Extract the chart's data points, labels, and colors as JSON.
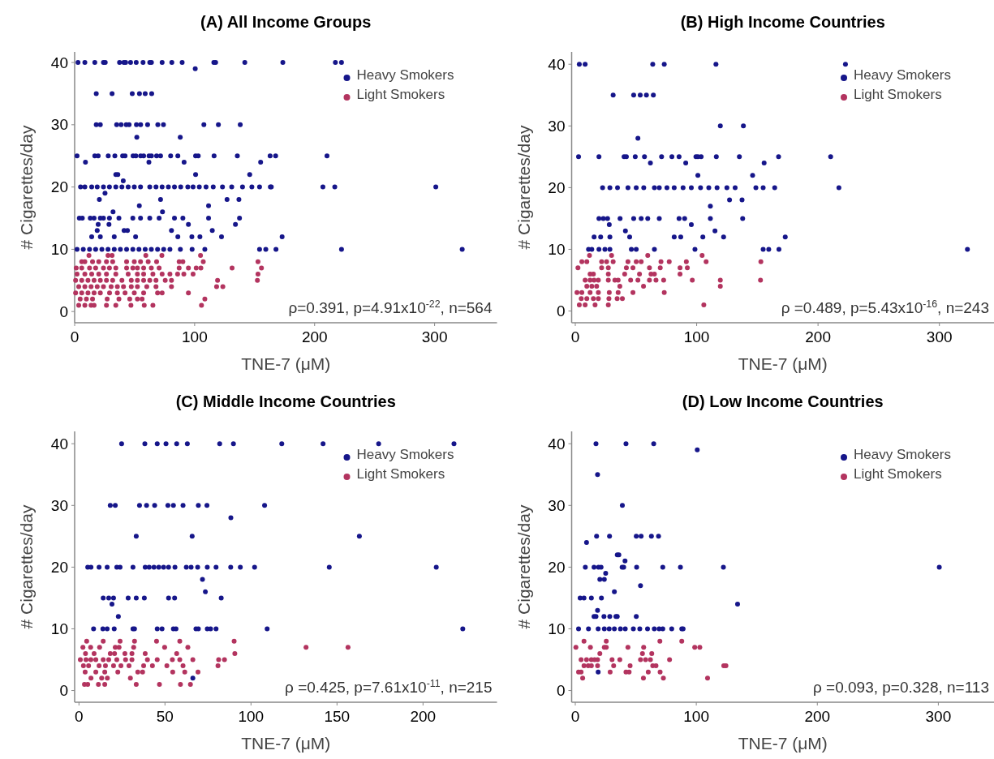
{
  "chart_data": [
    {
      "type": "scatter",
      "title": "(A) All Income Groups",
      "xlabel": "TNE-7 (μM)",
      "ylabel": "# Cigarettes/day",
      "xlim": [
        0,
        352
      ],
      "ylim": [
        -1.8,
        41.7
      ],
      "xticks": [
        0,
        100,
        200,
        300
      ],
      "yticks": [
        0,
        10,
        20,
        30,
        40
      ],
      "legend": "top right",
      "marker": "circle",
      "annotations": [
        "ρ=0.391, p=4.91x10$^{-22}$, n=564"
      ],
      "series": [
        {
          "name": "Heavy Smokers",
          "color": "#16168a",
          "x": [
            2.8,
            8.5,
            16.8,
            24,
            25.5,
            37.4,
            41,
            42.5,
            46.6,
            51.3,
            57,
            62.6,
            64,
            72.9,
            81,
            89.6,
            116,
            117.5,
            141.8,
            173.5,
            217.3,
            222.4,
            100.5,
            18,
            31.2,
            48,
            54,
            58.8,
            64.2,
            18,
            21.4,
            35,
            38.7,
            43,
            45.4,
            51.5,
            55,
            60.8,
            69.3,
            74,
            107.7,
            119.8,
            138,
            51.8,
            88,
            2,
            16.8,
            19.6,
            28,
            33.5,
            40,
            42,
            48.7,
            51,
            55,
            57.5,
            62,
            64,
            68.3,
            71.6,
            80,
            86,
            100.8,
            103,
            116.2,
            135.6,
            162.9,
            167.5,
            210.3,
            9,
            61.9,
            91.2,
            155,
            34.3,
            36,
            100.8,
            145.9,
            40.5,
            4.9,
            8.5,
            14.2,
            18.8,
            24,
            29,
            34.3,
            39.4,
            44.6,
            49.7,
            54.9,
            62.6,
            67.8,
            72.9,
            78.1,
            83.2,
            88.4,
            94.3,
            98.7,
            103.9,
            109.5,
            115.5,
            123.2,
            130.9,
            139.9,
            147.7,
            154.1,
            163.1,
            163.9,
            206.9,
            216.8,
            301,
            25.3,
            20.6,
            71.6,
            127,
            136.9,
            53.9,
            111.6,
            32,
            73.2,
            3.9,
            6.4,
            13,
            16.2,
            21.4,
            24,
            29,
            36.9,
            48.5,
            54.9,
            62.6,
            70.4,
            83.2,
            90.2,
            111.6,
            137.4,
            19.6,
            28.6,
            94.8,
            134,
            18.8,
            41.2,
            44,
            80.7,
            114.7,
            14.2,
            21.4,
            33,
            50.8,
            86,
            97.7,
            104.4,
            122.4,
            172.9,
            2,
            7.2,
            12.4,
            17.5,
            22.7,
            27.8,
            33,
            38.1,
            43.3,
            48.5,
            53.6,
            58.8,
            63.9,
            69.1,
            74.2,
            79.4,
            88.1,
            97.9,
            108.5,
            154.1,
            159.3,
            167.8,
            222.4,
            323
          ],
          "values": [
            40,
            40,
            40,
            40,
            40,
            40,
            40,
            40,
            40,
            40,
            40,
            40,
            40,
            40,
            40,
            40,
            40,
            40,
            40,
            40,
            40,
            40,
            39,
            35,
            35,
            35,
            35,
            35,
            35,
            30,
            30,
            30,
            30,
            30,
            30,
            30,
            30,
            30,
            30,
            30,
            30,
            30,
            30,
            28,
            28,
            25,
            25,
            25,
            25,
            25,
            25,
            25,
            25,
            25,
            25,
            25,
            25,
            25,
            25,
            25,
            25,
            25,
            25,
            25,
            25,
            25,
            25,
            25,
            25,
            24,
            24,
            24,
            24,
            22,
            22,
            22,
            22,
            21,
            20,
            20,
            20,
            20,
            20,
            20,
            20,
            20,
            20,
            20,
            20,
            20,
            20,
            20,
            20,
            20,
            20,
            20,
            20,
            20,
            20,
            20,
            20,
            20,
            20,
            20,
            20,
            20,
            20,
            20,
            20,
            20,
            19,
            18,
            18,
            18,
            18,
            17,
            17,
            16,
            16,
            15,
            15,
            15,
            15,
            15,
            15,
            15,
            15,
            15,
            15,
            15,
            15,
            15,
            15,
            15,
            15,
            14,
            14,
            14,
            14,
            13,
            13,
            13,
            13,
            13,
            12,
            12,
            12,
            12,
            12,
            12,
            12,
            12,
            12,
            10,
            10,
            10,
            10,
            10,
            10,
            10,
            10,
            10,
            10,
            10,
            10,
            10,
            10,
            10,
            10,
            10,
            10,
            10,
            10,
            10,
            10,
            10,
            10
          ]
        },
        {
          "name": "Light Smokers",
          "color": "#b3345f",
          "x": [
            11.9,
            27.8,
            31.2,
            59.3,
            72.7,
            104.9,
            5.9,
            8.5,
            14.9,
            20.1,
            26.5,
            31.7,
            43.3,
            49.7,
            54.9,
            61.3,
            68.3,
            87.1,
            90.2,
            107.2,
            152.8,
            1.3,
            5.9,
            12.4,
            17.5,
            24,
            29,
            34.3,
            43.3,
            48.5,
            52.3,
            57.5,
            63.9,
            70.4,
            87.1,
            94.8,
            101.3,
            105.2,
            131.2,
            155.7,
            2,
            8.5,
            14.2,
            20.1,
            26.5,
            34.3,
            44.6,
            52.3,
            57.5,
            65.2,
            72.9,
            79.4,
            85.8,
            91,
            98.7,
            152.8,
            0.8,
            5.9,
            11.1,
            16.2,
            21.4,
            26.5,
            31.7,
            39.4,
            47.2,
            52.3,
            57.5,
            62.6,
            67.8,
            75.5,
            80.7,
            119.1,
            152.3,
            3.4,
            8.5,
            13.7,
            18.8,
            24,
            30.4,
            35.6,
            40.7,
            47.2,
            52.3,
            60.1,
            67.8,
            80.7,
            118.3,
            123.5,
            0.8,
            5.9,
            11.1,
            16.2,
            21.4,
            29.1,
            35.6,
            42,
            49.7,
            57.5,
            69.1,
            72.9,
            94.8,
            4.6,
            9.8,
            14.9,
            27.1,
            36.9,
            45.9,
            52.3,
            56.2,
            108.5,
            3.4,
            8.5,
            13.7,
            16.2,
            26.5,
            34.3,
            46.9,
            58,
            65.2,
            105.7
          ],
          "values": [
            9,
            9,
            9,
            9,
            9,
            9,
            8,
            8,
            8,
            8,
            8,
            8,
            8,
            8,
            8,
            8,
            8,
            8,
            8,
            8,
            8,
            7,
            7,
            7,
            7,
            7,
            7,
            7,
            7,
            7,
            7,
            7,
            7,
            7,
            7,
            7,
            7,
            7,
            7,
            7,
            6,
            6,
            6,
            6,
            6,
            6,
            6,
            6,
            6,
            6,
            6,
            6,
            6,
            6,
            6,
            6,
            5,
            5,
            5,
            5,
            5,
            5,
            5,
            5,
            5,
            5,
            5,
            5,
            5,
            5,
            5,
            5,
            5,
            4,
            4,
            4,
            4,
            4,
            4,
            4,
            4,
            4,
            4,
            4,
            4,
            4,
            4,
            4,
            3,
            3,
            3,
            3,
            3,
            3,
            3,
            3,
            3,
            3,
            3,
            3,
            3,
            2,
            2,
            2,
            2,
            2,
            2,
            2,
            2,
            2,
            1,
            1,
            1,
            1,
            1,
            1,
            1,
            1,
            1,
            1
          ]
        }
      ]
    },
    {
      "type": "scatter",
      "title": "(B) High Income Countries",
      "xlabel": "TNE-7 (μM)",
      "ylabel": "# Cigarettes/day",
      "xlim": [
        -3,
        345
      ],
      "ylim": [
        -1.9,
        42
      ],
      "xticks": [
        0,
        100,
        200,
        300
      ],
      "yticks": [
        0,
        10,
        20,
        30,
        40
      ],
      "legend": "top right",
      "marker": "circle",
      "annotations": [
        "ρ =0.489, p=5.43x10$^{-16}$, n=243"
      ],
      "series": [
        {
          "name": "Heavy Smokers",
          "color": "#16168a",
          "x": [
            3.3,
            8.1,
            63.8,
            73.3,
            115.9,
            222.6,
            31.2,
            48.1,
            53.5,
            58.6,
            64.3,
            119.5,
            138.5,
            51.6,
            2.7,
            19.5,
            40.2,
            42.1,
            49.4,
            57,
            71.1,
            79.6,
            85.5,
            99.4,
            101,
            103.7,
            116.2,
            135.2,
            167.5,
            210.4,
            61.9,
            91,
            155.6,
            101,
            146.1,
            22.5,
            28.5,
            34.8,
            43.4,
            50.2,
            56.4,
            65.2,
            69.2,
            75.5,
            81.5,
            88.8,
            95.6,
            103.2,
            110,
            116.8,
            124.9,
            131.7,
            148.8,
            154.8,
            164.3,
            217.2,
            127.1,
            137.4,
            111.3,
            19.5,
            23.1,
            26.6,
            36.9,
            48.1,
            54.3,
            59.7,
            69.2,
            85.5,
            90.1,
            111.3,
            137.9,
            28,
            95.6,
            41.3,
            115.1,
            15.5,
            20.9,
            28.5,
            44.8,
            81.5,
            86.9,
            105.1,
            122.2,
            173,
            10.9,
            13.6,
            19.5,
            24.4,
            28.5,
            46.2,
            50.2,
            65.2,
            98.6,
            154.8,
            159.4,
            167.8,
            323.1
          ],
          "values": [
            40,
            40,
            40,
            40,
            40,
            40,
            35,
            35,
            35,
            35,
            35,
            30,
            30,
            28,
            25,
            25,
            25,
            25,
            25,
            25,
            25,
            25,
            25,
            25,
            25,
            25,
            25,
            25,
            25,
            25,
            24,
            24,
            24,
            22,
            22,
            20,
            20,
            20,
            20,
            20,
            20,
            20,
            20,
            20,
            20,
            20,
            20,
            20,
            20,
            20,
            20,
            20,
            20,
            20,
            20,
            20,
            18,
            18,
            17,
            15,
            15,
            15,
            15,
            15,
            15,
            15,
            15,
            15,
            15,
            15,
            15,
            14,
            14,
            13,
            13,
            12,
            12,
            12,
            12,
            12,
            12,
            12,
            12,
            12,
            10,
            10,
            10,
            10,
            10,
            10,
            10,
            10,
            10,
            10,
            10,
            10,
            10
          ]
        },
        {
          "name": "Light Smokers",
          "color": "#b3345f",
          "x": [
            11.7,
            29.9,
            59.7,
            104.5,
            5.4,
            9.5,
            21.7,
            25.8,
            31.2,
            43.4,
            50.2,
            54.3,
            70.6,
            77.4,
            91.5,
            107.8,
            152.9,
            2.2,
            21.7,
            27.2,
            42.1,
            47.5,
            61.1,
            70,
            86.3,
            92.3,
            12.2,
            14.9,
            27.2,
            40.7,
            52.9,
            62.4,
            65.2,
            86.3,
            8.1,
            12.2,
            15.5,
            19,
            27.2,
            32.6,
            35.3,
            45.6,
            51.6,
            61.1,
            66.5,
            72.8,
            96.4,
            119.5,
            152.6,
            9.5,
            13.6,
            17.6,
            36.7,
            56.2,
            119.5,
            1.4,
            5.4,
            12.2,
            19,
            28,
            35.3,
            47.5,
            73.3,
            4.9,
            9.5,
            14.9,
            19,
            27.7,
            34.5,
            38.8,
            3.3,
            8.1,
            16.3,
            27.2,
            105.9
          ],
          "values": [
            9,
            9,
            9,
            9,
            8,
            8,
            8,
            8,
            8,
            8,
            8,
            8,
            8,
            8,
            8,
            8,
            8,
            7,
            7,
            7,
            7,
            7,
            7,
            7,
            7,
            7,
            6,
            6,
            6,
            6,
            6,
            6,
            6,
            6,
            5,
            5,
            5,
            5,
            5,
            5,
            5,
            5,
            5,
            5,
            5,
            5,
            5,
            5,
            5,
            4,
            4,
            4,
            4,
            4,
            4,
            3,
            3,
            3,
            3,
            3,
            3,
            3,
            3,
            2,
            2,
            2,
            2,
            2,
            2,
            2,
            1,
            1,
            1,
            1,
            1
          ]
        }
      ]
    },
    {
      "type": "scatter",
      "title": "(C) Middle Income Countries",
      "xlabel": "TNE-7 (μM)",
      "ylabel": "# Cigarettes/day",
      "xlim": [
        -2.5,
        243
      ],
      "ylim": [
        -1.9,
        42
      ],
      "xticks": [
        0,
        50,
        100,
        150,
        200
      ],
      "yticks": [
        0,
        10,
        20,
        30,
        40
      ],
      "legend": "top right",
      "marker": "circle",
      "annotations": [
        "ρ =0.425, p=7.61x10$^{-11}$, n=215"
      ],
      "series": [
        {
          "name": "Heavy Smokers",
          "color": "#16168a",
          "x": [
            24.8,
            38.3,
            45.5,
            50.6,
            56.8,
            63,
            81.8,
            89.8,
            117.9,
            141.9,
            174.2,
            218,
            18.2,
            21.1,
            35.2,
            39.3,
            44,
            51.7,
            54.9,
            60.5,
            69.4,
            74.4,
            107.9,
            88.3,
            33.3,
            65.8,
            163,
            5.1,
            7,
            11.7,
            16.4,
            22,
            23.9,
            31.4,
            38.5,
            40.8,
            43.6,
            46.4,
            49.2,
            52.1,
            55.8,
            62.4,
            65.2,
            69,
            74.6,
            79.7,
            88.2,
            93.8,
            102.1,
            145.5,
            207.7,
            71.8,
            73.5,
            14.1,
            17.3,
            20.1,
            28.6,
            33.3,
            38,
            52.1,
            55.6,
            82.7,
            19.2,
            22.9,
            8.5,
            13.9,
            16.4,
            20.5,
            31.4,
            32.3,
            45.5,
            48.3,
            54.9,
            56.4,
            68,
            69.4,
            74.6,
            76.5,
            79.7,
            109.4,
            223.1,
            66.2
          ],
          "values": [
            40,
            40,
            40,
            40,
            40,
            40,
            40,
            40,
            40,
            40,
            40,
            40,
            30,
            30,
            30,
            30,
            30,
            30,
            30,
            30,
            30,
            30,
            30,
            28,
            25,
            25,
            25,
            20,
            20,
            20,
            20,
            20,
            20,
            20,
            20,
            20,
            20,
            20,
            20,
            20,
            20,
            20,
            20,
            20,
            20,
            20,
            20,
            20,
            20,
            20,
            20,
            18,
            16,
            15,
            15,
            15,
            15,
            15,
            15,
            15,
            15,
            15,
            14,
            12,
            10,
            10,
            10,
            10,
            10,
            10,
            10,
            10,
            10,
            10,
            10,
            10,
            10,
            10,
            10,
            10,
            10,
            2
          ]
        },
        {
          "name": "Light Smokers",
          "color": "#b3345f",
          "x": [
            4.5,
            14.1,
            23.9,
            32.3,
            45.1,
            58.6,
            90.2,
            2.3,
            6.8,
            12,
            21.1,
            23.3,
            31.8,
            49.8,
            63.3,
            132,
            156.4,
            3.8,
            8.8,
            18.2,
            20.7,
            26.7,
            30.8,
            38.5,
            56.8,
            90.6,
            0.8,
            4.1,
            6.9,
            9.8,
            14.1,
            17.3,
            22,
            27.1,
            30.8,
            39.8,
            45.5,
            54.3,
            58.6,
            66.2,
            81.2,
            84.6,
            2.6,
            5.6,
            11.7,
            15.4,
            20.1,
            24.4,
            29.1,
            37.6,
            42.7,
            51.1,
            60.5,
            80.8,
            3.6,
            9.8,
            15,
            22.6,
            34.2,
            37,
            54.5,
            61.5,
            69.2,
            7,
            13.2,
            16.5,
            29.9,
            3.2,
            5.1,
            11.3,
            15,
            33.3,
            46.8,
            59,
            64.8
          ],
          "values": [
            8,
            8,
            8,
            8,
            8,
            8,
            8,
            7,
            7,
            7,
            7,
            7,
            7,
            7,
            7,
            7,
            7,
            6,
            6,
            6,
            6,
            6,
            6,
            6,
            6,
            6,
            5,
            5,
            5,
            5,
            5,
            5,
            5,
            5,
            5,
            5,
            5,
            5,
            5,
            5,
            5,
            5,
            4,
            4,
            4,
            4,
            4,
            4,
            4,
            4,
            4,
            4,
            4,
            4,
            3,
            3,
            3,
            3,
            3,
            3,
            3,
            3,
            3,
            2,
            2,
            2,
            2,
            1,
            1,
            1,
            1,
            1,
            1,
            1,
            1
          ]
        }
      ]
    },
    {
      "type": "scatter",
      "title": "(D) Low Income Countries",
      "xlabel": "TNE-7 (μM)",
      "ylabel": "# Cigarettes/day",
      "xlim": [
        -3,
        346
      ],
      "ylim": [
        -1.9,
        42
      ],
      "xticks": [
        0,
        100,
        200,
        300
      ],
      "yticks": [
        0,
        10,
        20,
        30,
        40
      ],
      "legend": "top right",
      "marker": "circle",
      "annotations": [
        "ρ =0.093, p=0.328, n=113"
      ],
      "series": [
        {
          "name": "Heavy Smokers",
          "color": "#16168a",
          "x": [
            17.1,
            41.9,
            64.8,
            100.8,
            18.4,
            38.9,
            17.6,
            28.3,
            50.4,
            54.4,
            62.9,
            68.8,
            9.3,
            34.7,
            36,
            41.1,
            8.3,
            15.5,
            19.2,
            21.3,
            38.7,
            40,
            50.7,
            72.3,
            86.9,
            122.4,
            300.8,
            25.1,
            20.3,
            24,
            53.9,
            32.3,
            4,
            7.2,
            13.3,
            21.6,
            134.1,
            18.4,
            15.5,
            17.1,
            23.7,
            28.5,
            33.6,
            34.7,
            50.4,
            2.7,
            10.9,
            18.9,
            24,
            28,
            32.3,
            37.3,
            41.3,
            48,
            53.3,
            59.7,
            65.3,
            69.3,
            72.3,
            79.7,
            88,
            89.1,
            18.9
          ],
          "values": [
            40,
            40,
            40,
            39,
            35,
            30,
            25,
            25,
            25,
            25,
            25,
            25,
            24,
            22,
            22,
            21,
            20,
            20,
            20,
            20,
            20,
            20,
            20,
            20,
            20,
            20,
            20,
            19,
            18,
            18,
            17,
            16,
            15,
            15,
            15,
            15,
            14,
            13,
            12,
            12,
            12,
            12,
            12,
            12,
            12,
            10,
            10,
            10,
            10,
            10,
            10,
            10,
            10,
            10,
            10,
            10,
            10,
            10,
            10,
            10,
            10,
            10,
            3
          ]
        },
        {
          "name": "Light Smokers",
          "color": "#b3345f",
          "x": [
            7.2,
            25.6,
            69.9,
            88,
            0.5,
            12.5,
            24,
            25.6,
            43.5,
            56.5,
            98.7,
            102.9,
            20.3,
            55.5,
            63.2,
            4.8,
            9.3,
            13.3,
            16,
            18.4,
            30.4,
            36.8,
            53.9,
            58.1,
            62.1,
            77.9,
            7.2,
            10.7,
            13.3,
            18.4,
            31.7,
            45.3,
            64,
            66.7,
            122.7,
            124.5,
            2.7,
            4.8,
            28.8,
            41.9,
            44.5,
            60.3,
            70.1,
            6.1,
            56.3,
            72.8,
            109.3
          ],
          "values": [
            8,
            8,
            8,
            8,
            7,
            7,
            7,
            7,
            7,
            7,
            7,
            7,
            6,
            6,
            6,
            5,
            5,
            5,
            5,
            5,
            5,
            5,
            5,
            5,
            5,
            5,
            4,
            4,
            4,
            4,
            4,
            4,
            4,
            4,
            4,
            4,
            3,
            3,
            3,
            3,
            3,
            3,
            3,
            2,
            2,
            2,
            2
          ]
        }
      ]
    }
  ]
}
